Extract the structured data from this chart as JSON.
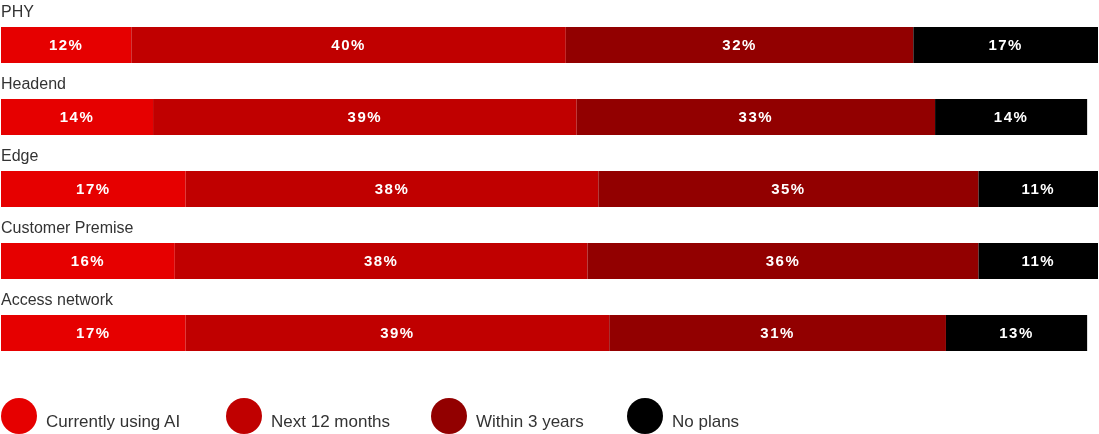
{
  "chart_data": {
    "type": "bar",
    "orientation": "horizontal",
    "stacked": true,
    "legend": "bottom",
    "categories": [
      "PHY",
      "Headend",
      "Edge",
      "Customer Premise",
      "Access network"
    ],
    "series": [
      {
        "name": "Currently using AI",
        "color": "#e60000",
        "values": [
          12,
          14,
          17,
          16,
          17
        ],
        "value_labels": [
          "12%",
          "14%",
          "17%",
          "16%",
          "17%"
        ]
      },
      {
        "name": "Next 12 months",
        "color": "#c00000",
        "values": [
          40,
          39,
          38,
          38,
          39
        ],
        "value_labels": [
          "40%",
          "39%",
          "38%",
          "38%",
          "39%"
        ]
      },
      {
        "name": "Within 3 years",
        "color": "#920000",
        "values": [
          32,
          33,
          35,
          36,
          31
        ],
        "value_labels": [
          "32%",
          "33%",
          "35%",
          "36%",
          "31%"
        ]
      },
      {
        "name": "No plans",
        "color": "#000000",
        "values": [
          17,
          14,
          11,
          11,
          13
        ],
        "value_labels": [
          "17%",
          "14%",
          "11%",
          "11%",
          "13%"
        ]
      }
    ]
  }
}
